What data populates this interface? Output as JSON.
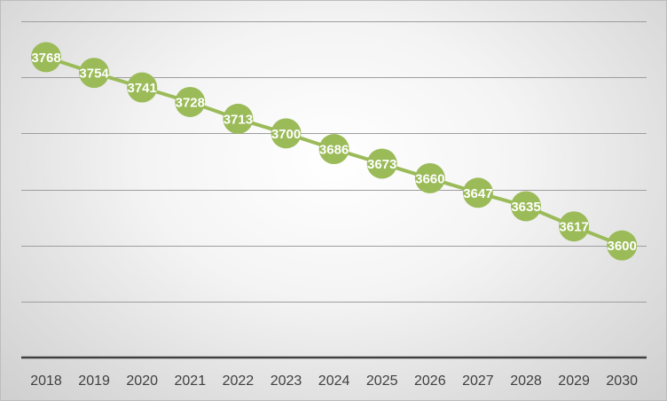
{
  "chart_data": {
    "type": "line",
    "categories": [
      "2018",
      "2019",
      "2020",
      "2021",
      "2022",
      "2023",
      "2024",
      "2025",
      "2026",
      "2027",
      "2028",
      "2029",
      "2030"
    ],
    "series": [
      {
        "values": [
          3768,
          3754,
          3741,
          3728,
          3713,
          3700,
          3686,
          3673,
          3660,
          3647,
          3635,
          3617,
          3600
        ],
        "labels": [
          "3768",
          "3754",
          "3741",
          "3728",
          "3713",
          "3700",
          "3686",
          "3673",
          "3660",
          "3647",
          "3635",
          "3617",
          "3600"
        ],
        "color": "#9bbb59"
      }
    ],
    "ylim": [
      3500,
      3800
    ],
    "ygrid_step": 50,
    "grid": true,
    "legend": "none",
    "data_labels": true
  }
}
